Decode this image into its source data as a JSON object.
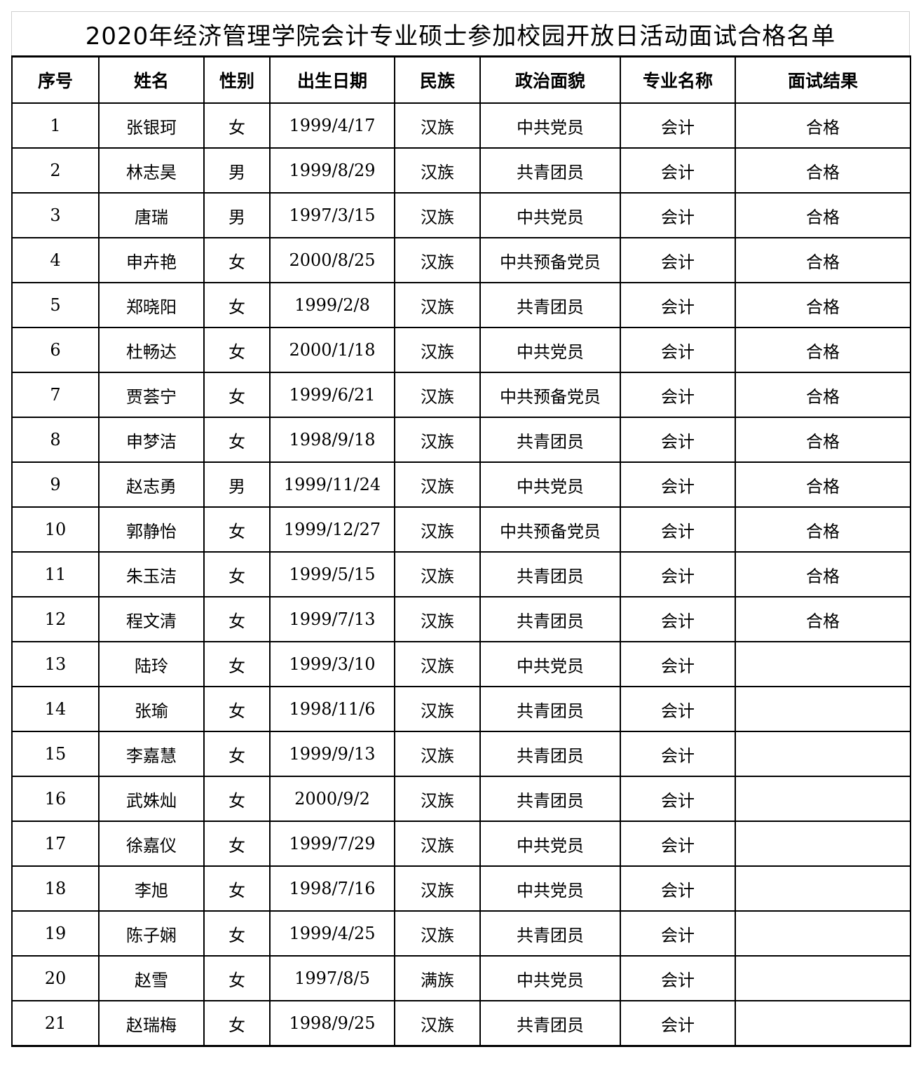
{
  "title": "2020年经济管理学院会计专业硕士参加校园开放日活动面试合格名单",
  "columns": [
    "序号",
    "姓名",
    "性别",
    "出生日期",
    "民族",
    "政治面貌",
    "专业名称",
    "面试结果"
  ],
  "rows": [
    [
      "1",
      "张银珂",
      "女",
      "1999/4/17",
      "汉族",
      "中共党员",
      "会计",
      "合格"
    ],
    [
      "2",
      "林志昊",
      "男",
      "1999/8/29",
      "汉族",
      "共青团员",
      "会计",
      "合格"
    ],
    [
      "3",
      "唐瑞",
      "男",
      "1997/3/15",
      "汉族",
      "中共党员",
      "会计",
      "合格"
    ],
    [
      "4",
      "申卉艳",
      "女",
      "2000/8/25",
      "汉族",
      "中共预备党员",
      "会计",
      "合格"
    ],
    [
      "5",
      "郑晓阳",
      "女",
      "1999/2/8",
      "汉族",
      "共青团员",
      "会计",
      "合格"
    ],
    [
      "6",
      "杜畅达",
      "女",
      "2000/1/18",
      "汉族",
      "中共党员",
      "会计",
      "合格"
    ],
    [
      "7",
      "贾荟宁",
      "女",
      "1999/6/21",
      "汉族",
      "中共预备党员",
      "会计",
      "合格"
    ],
    [
      "8",
      "申梦洁",
      "女",
      "1998/9/18",
      "汉族",
      "共青团员",
      "会计",
      "合格"
    ],
    [
      "9",
      "赵志勇",
      "男",
      "1999/11/24",
      "汉族",
      "中共党员",
      "会计",
      "合格"
    ],
    [
      "10",
      "郭静怡",
      "女",
      "1999/12/27",
      "汉族",
      "中共预备党员",
      "会计",
      "合格"
    ],
    [
      "11",
      "朱玉洁",
      "女",
      "1999/5/15",
      "汉族",
      "共青团员",
      "会计",
      "合格"
    ],
    [
      "12",
      "程文清",
      "女",
      "1999/7/13",
      "汉族",
      "共青团员",
      "会计",
      "合格"
    ],
    [
      "13",
      "陆玲",
      "女",
      "1999/3/10",
      "汉族",
      "中共党员",
      "会计",
      ""
    ],
    [
      "14",
      "张瑜",
      "女",
      "1998/11/6",
      "汉族",
      "共青团员",
      "会计",
      ""
    ],
    [
      "15",
      "李嘉慧",
      "女",
      "1999/9/13",
      "汉族",
      "共青团员",
      "会计",
      ""
    ],
    [
      "16",
      "武姝灿",
      "女",
      "2000/9/2",
      "汉族",
      "共青团员",
      "会计",
      ""
    ],
    [
      "17",
      "徐嘉仪",
      "女",
      "1999/7/29",
      "汉族",
      "中共党员",
      "会计",
      ""
    ],
    [
      "18",
      "李旭",
      "女",
      "1998/7/16",
      "汉族",
      "中共党员",
      "会计",
      ""
    ],
    [
      "19",
      "陈子娴",
      "女",
      "1999/4/25",
      "汉族",
      "共青团员",
      "会计",
      ""
    ],
    [
      "20",
      "赵雪",
      "女",
      "1997/8/5",
      "满族",
      "中共党员",
      "会计",
      ""
    ],
    [
      "21",
      "赵瑞梅",
      "女",
      "1998/9/25",
      "汉族",
      "共青团员",
      "会计",
      ""
    ]
  ]
}
